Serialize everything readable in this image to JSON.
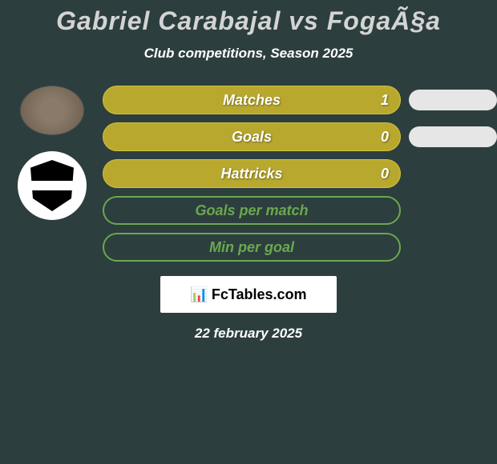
{
  "title": "Gabriel Carabajal vs FogaÃ§a",
  "subtitle": "Club competitions, Season 2025",
  "background_color": "#2d3e3e",
  "bar_styles": {
    "filled_color": "#b8a82e",
    "filled_border": "#d4c43a",
    "outlined_color": "transparent",
    "outlined_border": "#6aa84f",
    "pill_color": "#e6e6e6"
  },
  "bars": [
    {
      "label": "Matches",
      "value": "1",
      "filled": true,
      "show_pill": true
    },
    {
      "label": "Goals",
      "value": "0",
      "filled": true,
      "show_pill": true
    },
    {
      "label": "Hattricks",
      "value": "0",
      "filled": true,
      "show_pill": false
    },
    {
      "label": "Goals per match",
      "value": "",
      "filled": false,
      "show_pill": false
    },
    {
      "label": "Min per goal",
      "value": "",
      "filled": false,
      "show_pill": false
    }
  ],
  "logo": {
    "text": "FcTables.com",
    "icon": "📊"
  },
  "date": "22 february 2025",
  "typography": {
    "title_fontsize": 32,
    "subtitle_fontsize": 17,
    "bar_label_fontsize": 18,
    "date_fontsize": 17
  }
}
